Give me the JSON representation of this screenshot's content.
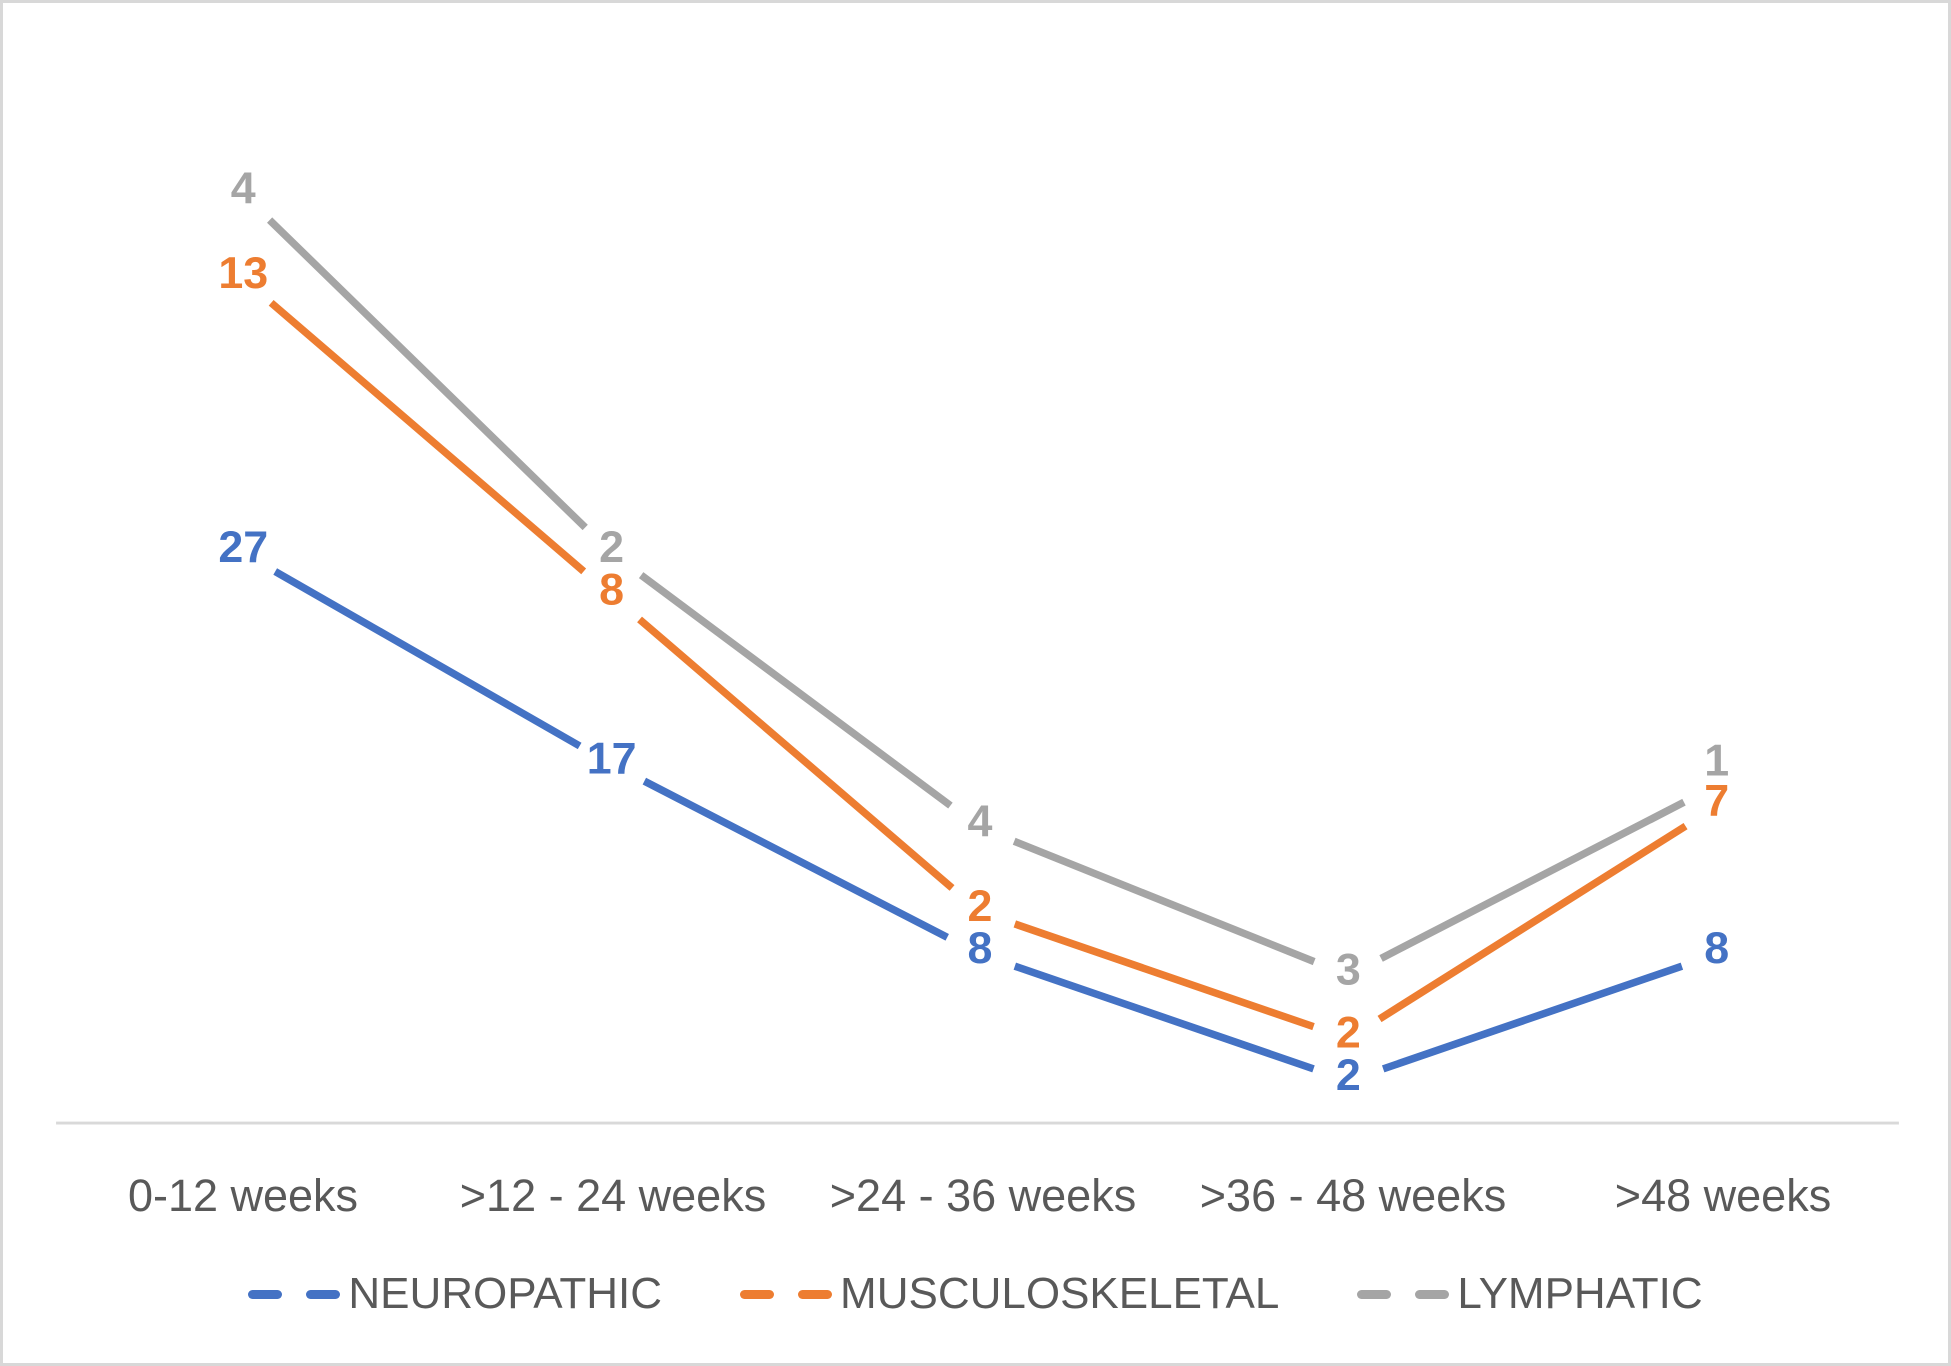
{
  "chart_data": {
    "type": "line",
    "subtype": "stacked",
    "title": "",
    "categories": [
      "0-12 weeks",
      ">12 - 24 weeks",
      ">24 - 36 weeks",
      ">36 - 48 weeks",
      ">48 weeks"
    ],
    "series": [
      {
        "name": "NEUROPATHIC",
        "values": [
          27,
          17,
          8,
          2,
          8
        ],
        "color": "#4472C4"
      },
      {
        "name": "MUSCULOSKELETAL",
        "values": [
          13,
          8,
          2,
          2,
          7
        ],
        "color": "#ED7D31"
      },
      {
        "name": "LYMPHATIC",
        "values": [
          4,
          2,
          4,
          3,
          1
        ],
        "color": "#A5A5A5"
      }
    ],
    "stacked_totals": [
      44,
      27,
      14,
      7,
      16
    ],
    "data_labels": "each point labeled with its series value, in series color",
    "legend_position": "bottom",
    "axes": {
      "x_label": "",
      "y_label": "",
      "y_axis_visible": false,
      "y_min": 0,
      "y_max_implied": 50,
      "gridlines": false
    },
    "colors": {
      "text": "#595959",
      "axis_line": "#D9D9D9",
      "background": "#FFFFFF",
      "frame_border": "#D8D8D8"
    }
  }
}
